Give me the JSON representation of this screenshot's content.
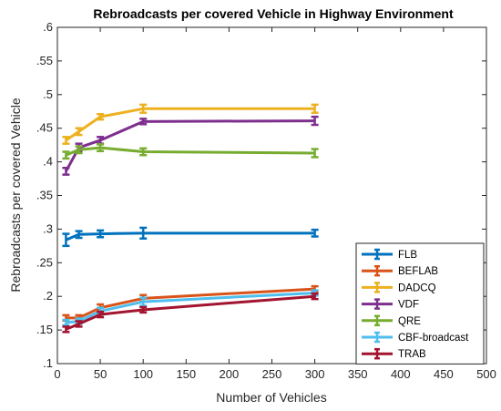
{
  "chart_data": {
    "type": "line",
    "title": "Rebroadcasts per covered Vehicle in Highway Environment",
    "xlabel": "Number of Vehicles",
    "ylabel": "Rebroadcasts per covered Vehicle",
    "xlim": [
      0,
      500
    ],
    "ylim": [
      0.1,
      0.6
    ],
    "xticks": [
      0,
      50,
      100,
      150,
      200,
      250,
      300,
      350,
      400,
      450,
      500
    ],
    "yticks": [
      0.1,
      0.15,
      0.2,
      0.25,
      0.3,
      0.35,
      0.4,
      0.45,
      0.5,
      0.55,
      0.6
    ],
    "grid": false,
    "legend_position": "bottom-right",
    "x": [
      10,
      25,
      50,
      100,
      300
    ],
    "series": [
      {
        "name": "FLB",
        "color": "#0072BD",
        "values": [
          0.284,
          0.292,
          0.293,
          0.294,
          0.294
        ],
        "errors": [
          0.009,
          0.005,
          0.005,
          0.008,
          0.005
        ]
      },
      {
        "name": "BEFLAB",
        "color": "#D95319",
        "values": [
          0.168,
          0.168,
          0.183,
          0.197,
          0.211
        ],
        "errors": [
          0.004,
          0.004,
          0.005,
          0.005,
          0.004
        ]
      },
      {
        "name": "DADCQ",
        "color": "#EDB120",
        "values": [
          0.432,
          0.445,
          0.467,
          0.479,
          0.479
        ],
        "errors": [
          0.005,
          0.005,
          0.004,
          0.006,
          0.006
        ]
      },
      {
        "name": "VDF",
        "color": "#7E2F8E",
        "values": [
          0.386,
          0.421,
          0.432,
          0.46,
          0.461
        ],
        "errors": [
          0.005,
          0.006,
          0.005,
          0.004,
          0.006
        ]
      },
      {
        "name": "QRE",
        "color": "#77AC30",
        "values": [
          0.41,
          0.418,
          0.421,
          0.415,
          0.413
        ],
        "errors": [
          0.005,
          0.005,
          0.005,
          0.005,
          0.006
        ]
      },
      {
        "name": "CBF-broadcast",
        "color": "#4DBEEE",
        "values": [
          0.161,
          0.163,
          0.178,
          0.192,
          0.205
        ],
        "errors": [
          0.004,
          0.004,
          0.005,
          0.006,
          0.004
        ]
      },
      {
        "name": "TRAB",
        "color": "#A2142F",
        "values": [
          0.151,
          0.159,
          0.173,
          0.18,
          0.2
        ],
        "errors": [
          0.004,
          0.004,
          0.004,
          0.004,
          0.004
        ]
      }
    ]
  }
}
